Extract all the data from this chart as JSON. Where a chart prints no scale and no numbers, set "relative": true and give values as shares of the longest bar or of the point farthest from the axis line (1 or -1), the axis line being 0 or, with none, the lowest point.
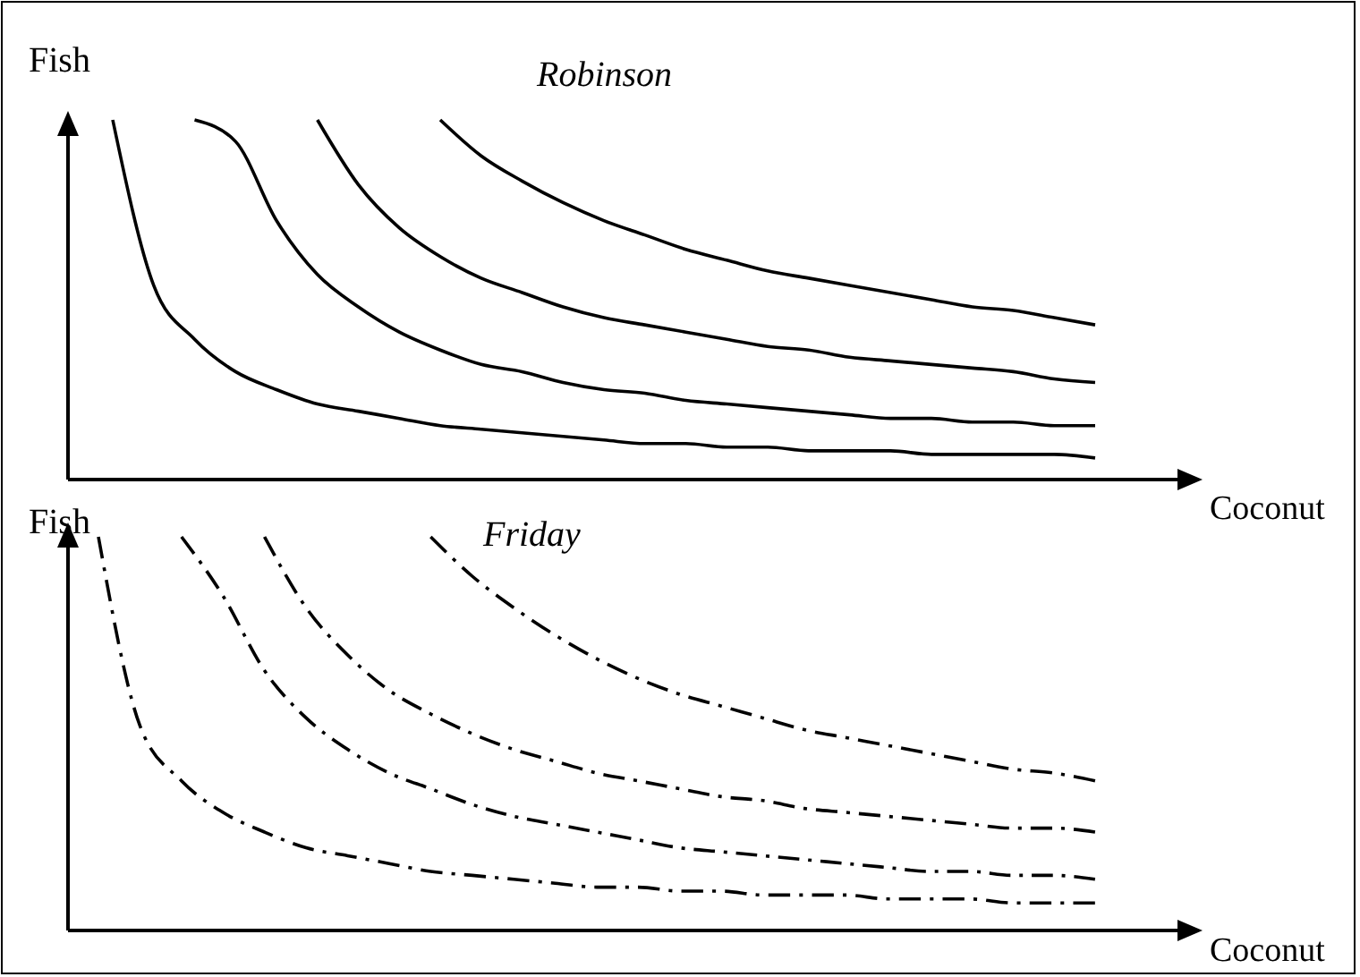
{
  "chart_data": [
    {
      "type": "line",
      "title": "Robinson",
      "xlabel": "Coconut",
      "ylabel": "Fish",
      "relative": true,
      "marker": "none",
      "line_style": "solid",
      "categories": [
        null,
        null,
        null,
        null,
        null,
        null,
        null,
        null,
        null,
        null,
        null,
        null,
        null,
        null,
        null,
        null,
        null,
        null,
        null,
        null,
        null,
        null,
        null,
        null,
        null
      ],
      "series": [
        {
          "color": "#000000",
          "values": [
            1,
            0.54,
            0.39,
            0.3,
            0.25,
            0.21,
            0.19,
            0.17,
            0.15,
            0.14,
            0.13,
            0.12,
            0.11,
            0.1,
            0.1,
            0.09,
            0.09,
            0.08,
            0.08,
            0.08,
            0.07,
            0.07,
            0.07,
            0.07,
            0.06
          ]
        },
        {
          "color": "#000000",
          "values": [
            null,
            null,
            1,
            0.94,
            0.72,
            0.57,
            0.48,
            0.41,
            0.36,
            0.32,
            0.3,
            0.27,
            0.25,
            0.24,
            0.22,
            0.21,
            0.2,
            0.19,
            0.18,
            0.17,
            0.17,
            0.16,
            0.16,
            0.15,
            0.15
          ]
        },
        {
          "color": "#000000",
          "values": [
            null,
            null,
            null,
            null,
            null,
            1,
            0.82,
            0.7,
            0.62,
            0.56,
            0.52,
            0.48,
            0.45,
            0.43,
            0.41,
            0.39,
            0.37,
            0.36,
            0.34,
            0.33,
            0.32,
            0.31,
            0.3,
            0.28,
            0.27
          ]
        },
        {
          "color": "#000000",
          "values": [
            null,
            null,
            null,
            null,
            null,
            null,
            null,
            null,
            1,
            0.9,
            0.83,
            0.77,
            0.72,
            0.68,
            0.64,
            0.61,
            0.58,
            0.56,
            0.54,
            0.52,
            0.5,
            0.48,
            0.47,
            0.45,
            0.43
          ]
        }
      ]
    },
    {
      "type": "line",
      "title": "Friday",
      "xlabel": "Coconut",
      "ylabel": "Fish",
      "relative": true,
      "marker": "none",
      "line_style": "dashdot",
      "categories": [
        null,
        null,
        null,
        null,
        null,
        null,
        null,
        null,
        null,
        null,
        null,
        null,
        null,
        null,
        null,
        null,
        null,
        null,
        null,
        null,
        null,
        null,
        null,
        null,
        null
      ],
      "series": [
        {
          "color": "#000000",
          "values": [
            1,
            0.52,
            0.38,
            0.3,
            0.25,
            0.21,
            0.19,
            0.17,
            0.15,
            0.14,
            0.13,
            0.12,
            0.11,
            0.11,
            0.1,
            0.1,
            0.09,
            0.09,
            0.09,
            0.08,
            0.08,
            0.08,
            0.07,
            0.07,
            0.07
          ]
        },
        {
          "color": "#000000",
          "values": [
            null,
            null,
            1,
            0.85,
            0.66,
            0.54,
            0.46,
            0.4,
            0.36,
            0.32,
            0.29,
            0.27,
            0.25,
            0.23,
            0.21,
            0.2,
            0.19,
            0.18,
            0.17,
            0.16,
            0.15,
            0.15,
            0.14,
            0.14,
            0.13
          ]
        },
        {
          "color": "#000000",
          "values": [
            null,
            null,
            null,
            null,
            1,
            0.82,
            0.7,
            0.61,
            0.55,
            0.5,
            0.46,
            0.43,
            0.4,
            0.38,
            0.36,
            0.34,
            0.33,
            0.31,
            0.3,
            0.29,
            0.28,
            0.27,
            0.26,
            0.26,
            0.25
          ]
        },
        {
          "color": "#000000",
          "values": [
            null,
            null,
            null,
            null,
            null,
            null,
            null,
            null,
            1,
            0.9,
            0.82,
            0.75,
            0.69,
            0.64,
            0.6,
            0.57,
            0.54,
            0.51,
            0.49,
            0.47,
            0.45,
            0.43,
            0.41,
            0.4,
            0.38
          ]
        }
      ]
    }
  ]
}
